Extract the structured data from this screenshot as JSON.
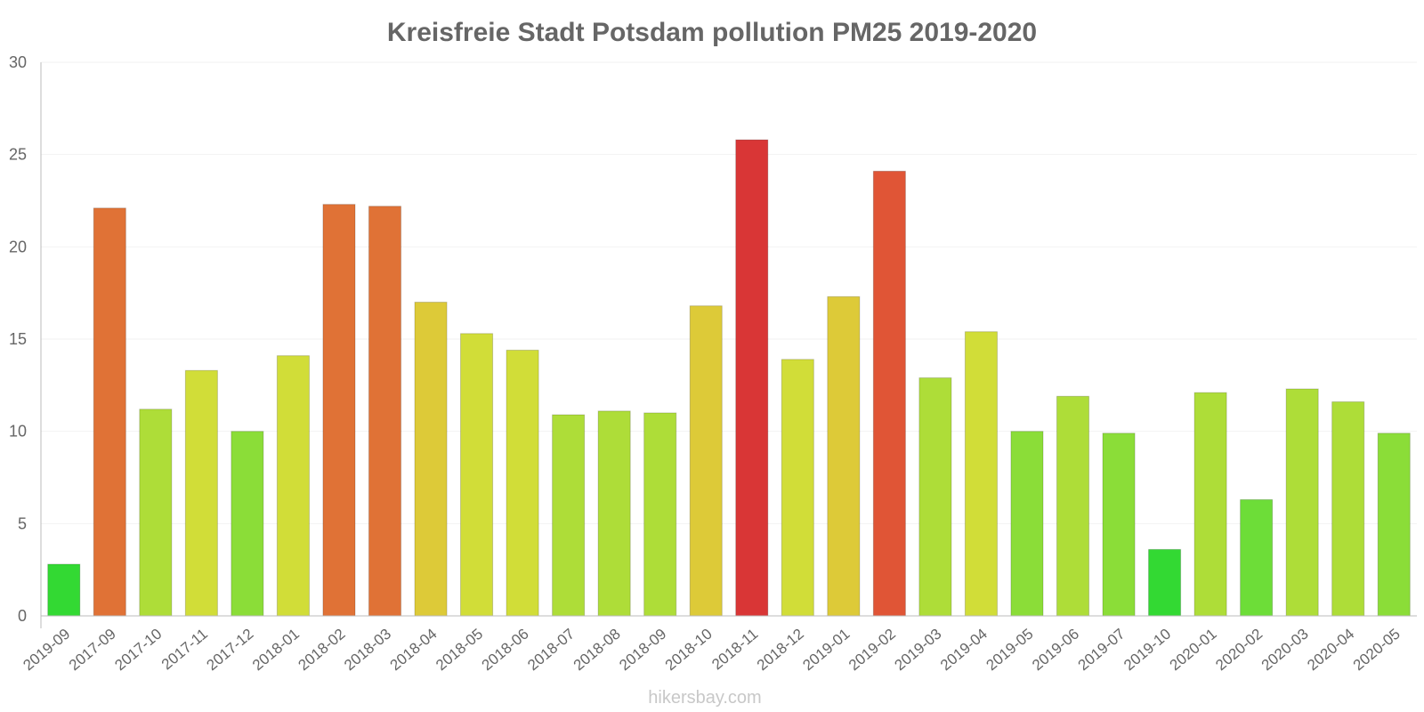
{
  "chart_data": {
    "type": "bar",
    "title": "Kreisfreie Stadt Potsdam pollution PM25 2019-2020",
    "xlabel": "",
    "ylabel": "",
    "ylim": [
      0,
      30
    ],
    "yticks": [
      "0",
      "5",
      "10",
      "15",
      "20",
      "25",
      "30"
    ],
    "grid": true,
    "categories": [
      "2019-09",
      "2017-09",
      "2017-10",
      "2017-11",
      "2017-12",
      "2018-01",
      "2018-02",
      "2018-03",
      "2018-04",
      "2018-05",
      "2018-06",
      "2018-07",
      "2018-08",
      "2018-09",
      "2018-10",
      "2018-11",
      "2018-12",
      "2019-01",
      "2019-02",
      "2019-03",
      "2019-04",
      "2019-05",
      "2019-06",
      "2019-07",
      "2019-10",
      "2020-01",
      "2020-02",
      "2020-03",
      "2020-04",
      "2020-05"
    ],
    "values": [
      2.8,
      22.1,
      11.2,
      13.3,
      10.0,
      14.1,
      22.3,
      22.2,
      17.0,
      15.3,
      14.4,
      10.9,
      11.1,
      11.0,
      16.8,
      25.8,
      13.9,
      17.3,
      24.1,
      12.9,
      15.4,
      10.0,
      11.9,
      9.9,
      3.6,
      12.1,
      6.3,
      12.3,
      11.6,
      9.9
    ],
    "colors": [
      "#33d933",
      "#e07236",
      "#aedd38",
      "#d1dd38",
      "#8bdd38",
      "#d1dd38",
      "#e07236",
      "#e07236",
      "#ddca38",
      "#d1dd38",
      "#d1dd38",
      "#aedd38",
      "#aedd38",
      "#aedd38",
      "#ddca38",
      "#d93636",
      "#d1dd38",
      "#ddca38",
      "#e05536",
      "#aedd38",
      "#d1dd38",
      "#8bdd38",
      "#aedd38",
      "#8bdd38",
      "#33d933",
      "#aedd38",
      "#6ddd38",
      "#aedd38",
      "#aedd38",
      "#8bdd38"
    ]
  },
  "credit": "hikersbay.com"
}
